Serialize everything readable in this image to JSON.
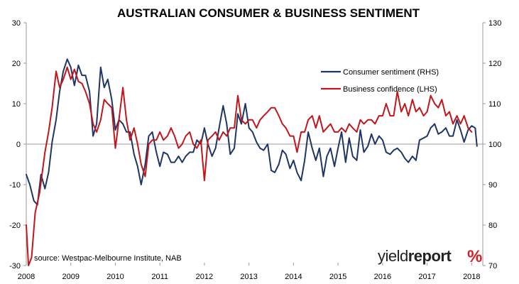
{
  "chart_data": {
    "type": "line",
    "title": "AUSTRALIAN CONSUMER & BUSINESS SENTIMENT",
    "x_range": [
      2008.0,
      2018.25
    ],
    "x_ticks": [
      "2008",
      "2009",
      "2010",
      "2011",
      "2012",
      "2013",
      "2014",
      "2015",
      "2016",
      "2017",
      "2018"
    ],
    "y_left": {
      "range": [
        -30,
        30
      ],
      "ticks": [
        "30",
        "20",
        "10",
        "0",
        "-10",
        "-20",
        "-30"
      ]
    },
    "y_right": {
      "range": [
        70,
        130
      ],
      "ticks": [
        "130",
        "120",
        "110",
        "100",
        "90",
        "80",
        "70"
      ]
    },
    "grid": false,
    "legend_placement": "upper-right",
    "source": "source: Westpac-Melbourne Institute, NAB",
    "logo": {
      "text_light": "yield",
      "text_bold": "report",
      "mark": "%"
    },
    "colors": {
      "consumer": "#1f3566",
      "business": "#c0161c",
      "axis": "#999999"
    },
    "series": [
      {
        "name": "Consumer sentiment (RHS)",
        "axis": "right",
        "color": "#1f3566",
        "points": [
          [
            2008.0,
            92.5
          ],
          [
            2008.08,
            90.0
          ],
          [
            2008.17,
            86.0
          ],
          [
            2008.25,
            85.0
          ],
          [
            2008.33,
            92.5
          ],
          [
            2008.42,
            89.0
          ],
          [
            2008.5,
            93.0
          ],
          [
            2008.58,
            100.5
          ],
          [
            2008.67,
            106.0
          ],
          [
            2008.75,
            113.0
          ],
          [
            2008.83,
            118.0
          ],
          [
            2008.92,
            121.0
          ],
          [
            2009.0,
            119.0
          ],
          [
            2009.08,
            114.5
          ],
          [
            2009.17,
            119.5
          ],
          [
            2009.25,
            117.0
          ],
          [
            2009.33,
            117.0
          ],
          [
            2009.42,
            113.0
          ],
          [
            2009.5,
            102.0
          ],
          [
            2009.58,
            105.0
          ],
          [
            2009.67,
            119.0
          ],
          [
            2009.75,
            114.0
          ],
          [
            2009.83,
            116.0
          ],
          [
            2009.92,
            111.0
          ],
          [
            2010.0,
            103.5
          ],
          [
            2010.08,
            106.0
          ],
          [
            2010.17,
            105.0
          ],
          [
            2010.25,
            103.0
          ],
          [
            2010.33,
            103.0
          ],
          [
            2010.42,
            97.5
          ],
          [
            2010.5,
            94.5
          ],
          [
            2010.58,
            90.0
          ],
          [
            2010.67,
            95.0
          ],
          [
            2010.75,
            102.0
          ],
          [
            2010.83,
            103.0
          ],
          [
            2010.92,
            98.0
          ],
          [
            2011.0,
            94.5
          ],
          [
            2011.08,
            98.0
          ],
          [
            2011.17,
            97.5
          ],
          [
            2011.25,
            95.5
          ],
          [
            2011.33,
            95.5
          ],
          [
            2011.42,
            97.0
          ],
          [
            2011.5,
            95.5
          ],
          [
            2011.58,
            97.0
          ],
          [
            2011.67,
            98.0
          ],
          [
            2011.75,
            98.0
          ],
          [
            2011.83,
            101.0
          ],
          [
            2011.92,
            100.0
          ],
          [
            2012.0,
            104.0
          ],
          [
            2012.08,
            100.0
          ],
          [
            2012.17,
            97.0
          ],
          [
            2012.25,
            99.0
          ],
          [
            2012.33,
            104.0
          ],
          [
            2012.42,
            109.5
          ],
          [
            2012.5,
            105.0
          ],
          [
            2012.58,
            97.5
          ],
          [
            2012.67,
            99.0
          ],
          [
            2012.75,
            107.5
          ],
          [
            2012.83,
            105.0
          ],
          [
            2012.92,
            110.0
          ],
          [
            2013.0,
            104.0
          ],
          [
            2013.08,
            103.0
          ],
          [
            2013.17,
            100.5
          ],
          [
            2013.25,
            99.0
          ],
          [
            2013.33,
            98.5
          ],
          [
            2013.42,
            100.0
          ],
          [
            2013.5,
            93.5
          ],
          [
            2013.58,
            93.0
          ],
          [
            2013.67,
            95.0
          ],
          [
            2013.75,
            98.5
          ],
          [
            2013.83,
            97.5
          ],
          [
            2013.92,
            94.0
          ],
          [
            2014.0,
            96.0
          ],
          [
            2014.08,
            93.0
          ],
          [
            2014.17,
            91.0
          ],
          [
            2014.25,
            96.0
          ],
          [
            2014.33,
            103.0
          ],
          [
            2014.42,
            99.0
          ],
          [
            2014.5,
            96.0
          ],
          [
            2014.58,
            99.0
          ],
          [
            2014.67,
            92.0
          ],
          [
            2014.75,
            97.0
          ],
          [
            2014.83,
            99.0
          ],
          [
            2014.92,
            94.5
          ],
          [
            2015.0,
            99.0
          ],
          [
            2015.08,
            103.0
          ],
          [
            2015.17,
            95.5
          ],
          [
            2015.25,
            101.5
          ],
          [
            2015.33,
            97.0
          ],
          [
            2015.42,
            96.0
          ],
          [
            2015.5,
            103.5
          ],
          [
            2015.58,
            98.0
          ],
          [
            2015.67,
            99.5
          ],
          [
            2015.75,
            102.5
          ],
          [
            2015.83,
            100.0
          ],
          [
            2015.92,
            102.0
          ],
          [
            2016.0,
            101.0
          ],
          [
            2016.08,
            98.0
          ],
          [
            2016.17,
            97.5
          ],
          [
            2016.25,
            98.5
          ],
          [
            2016.33,
            99.0
          ],
          [
            2016.42,
            98.0
          ],
          [
            2016.5,
            96.5
          ],
          [
            2016.58,
            95.5
          ],
          [
            2016.67,
            97.0
          ],
          [
            2016.75,
            96.0
          ],
          [
            2016.83,
            101.0
          ],
          [
            2016.92,
            101.5
          ],
          [
            2017.0,
            102.0
          ],
          [
            2017.08,
            104.0
          ],
          [
            2017.17,
            105.0
          ],
          [
            2017.25,
            102.5
          ],
          [
            2017.33,
            103.0
          ],
          [
            2017.42,
            104.0
          ],
          [
            2017.5,
            102.0
          ],
          [
            2017.58,
            102.0
          ],
          [
            2017.67,
            106.0
          ],
          [
            2017.75,
            103.5
          ],
          [
            2017.83,
            100.5
          ],
          [
            2017.92,
            103.5
          ],
          [
            2018.0,
            104.5
          ],
          [
            2018.08,
            104.0
          ],
          [
            2018.12,
            99.5
          ]
        ]
      },
      {
        "name": "Business confidence (LHS)",
        "axis": "left",
        "color": "#c0161c",
        "points": [
          [
            2008.0,
            -20.0
          ],
          [
            2008.05,
            -30.0
          ],
          [
            2008.12,
            -28.0
          ],
          [
            2008.2,
            -17.0
          ],
          [
            2008.3,
            -12.0
          ],
          [
            2008.42,
            -2.0
          ],
          [
            2008.5,
            3.0
          ],
          [
            2008.58,
            9.0
          ],
          [
            2008.67,
            18.0
          ],
          [
            2008.75,
            14.0
          ],
          [
            2008.83,
            16.0
          ],
          [
            2008.92,
            19.0
          ],
          [
            2009.0,
            16.0
          ],
          [
            2009.08,
            18.5
          ],
          [
            2009.17,
            15.5
          ],
          [
            2009.25,
            15.0
          ],
          [
            2009.33,
            13.0
          ],
          [
            2009.42,
            10.0
          ],
          [
            2009.5,
            5.0
          ],
          [
            2009.58,
            3.0
          ],
          [
            2009.67,
            6.0
          ],
          [
            2009.75,
            11.0
          ],
          [
            2009.83,
            10.0
          ],
          [
            2009.92,
            9.0
          ],
          [
            2010.0,
            -1.0
          ],
          [
            2010.08,
            6.0
          ],
          [
            2010.17,
            14.0
          ],
          [
            2010.25,
            6.0
          ],
          [
            2010.33,
            1.0
          ],
          [
            2010.42,
            4.0
          ],
          [
            2010.5,
            0.0
          ],
          [
            2010.58,
            -5.0
          ],
          [
            2010.67,
            -8.0
          ],
          [
            2010.75,
            0.0
          ],
          [
            2010.83,
            1.0
          ],
          [
            2010.92,
            1.0
          ],
          [
            2011.0,
            3.0
          ],
          [
            2011.08,
            1.0
          ],
          [
            2011.17,
            2.0
          ],
          [
            2011.25,
            4.0
          ],
          [
            2011.33,
            2.0
          ],
          [
            2011.42,
            -1.0
          ],
          [
            2011.5,
            0.0
          ],
          [
            2011.58,
            2.0
          ],
          [
            2011.67,
            3.0
          ],
          [
            2011.75,
            0.0
          ],
          [
            2011.83,
            -1.0
          ],
          [
            2011.92,
            1.0
          ],
          [
            2012.0,
            -9.0
          ],
          [
            2012.08,
            1.0
          ],
          [
            2012.17,
            2.0
          ],
          [
            2012.25,
            3.0
          ],
          [
            2012.33,
            1.0
          ],
          [
            2012.42,
            3.0
          ],
          [
            2012.5,
            2.0
          ],
          [
            2012.58,
            4.0
          ],
          [
            2012.67,
            4.0
          ],
          [
            2012.75,
            12.0
          ],
          [
            2012.83,
            6.0
          ],
          [
            2012.92,
            5.0
          ],
          [
            2013.0,
            6.0
          ],
          [
            2013.08,
            6.0
          ],
          [
            2013.17,
            4.0
          ],
          [
            2013.25,
            6.0
          ],
          [
            2013.33,
            7.0
          ],
          [
            2013.42,
            8.0
          ],
          [
            2013.5,
            9.0
          ],
          [
            2013.58,
            9.0
          ],
          [
            2013.67,
            7.0
          ],
          [
            2013.75,
            5.0
          ],
          [
            2013.83,
            4.0
          ],
          [
            2013.92,
            2.0
          ],
          [
            2014.0,
            2.0
          ],
          [
            2014.08,
            -2.0
          ],
          [
            2014.17,
            3.0
          ],
          [
            2014.25,
            3.0
          ],
          [
            2014.33,
            6.0
          ],
          [
            2014.42,
            7.0
          ],
          [
            2014.5,
            4.0
          ],
          [
            2014.58,
            7.0
          ],
          [
            2014.67,
            3.0
          ],
          [
            2014.75,
            4.0
          ],
          [
            2014.83,
            5.0
          ],
          [
            2014.92,
            3.0
          ],
          [
            2015.0,
            3.0
          ],
          [
            2015.08,
            4.0
          ],
          [
            2015.17,
            3.0
          ],
          [
            2015.25,
            5.0
          ],
          [
            2015.33,
            4.0
          ],
          [
            2015.42,
            3.0
          ],
          [
            2015.5,
            6.0
          ],
          [
            2015.58,
            5.0
          ],
          [
            2015.67,
            6.0
          ],
          [
            2015.75,
            6.0
          ],
          [
            2015.83,
            5.0
          ],
          [
            2015.92,
            7.0
          ],
          [
            2016.0,
            7.0
          ],
          [
            2016.08,
            10.0
          ],
          [
            2016.17,
            7.0
          ],
          [
            2016.25,
            7.0
          ],
          [
            2016.33,
            13.0
          ],
          [
            2016.42,
            8.0
          ],
          [
            2016.5,
            10.0
          ],
          [
            2016.58,
            7.0
          ],
          [
            2016.67,
            11.0
          ],
          [
            2016.75,
            8.0
          ],
          [
            2016.83,
            9.0
          ],
          [
            2016.92,
            7.0
          ],
          [
            2017.0,
            8.0
          ],
          [
            2017.08,
            12.0
          ],
          [
            2017.17,
            10.0
          ],
          [
            2017.25,
            9.0
          ],
          [
            2017.33,
            11.0
          ],
          [
            2017.42,
            7.0
          ],
          [
            2017.5,
            8.0
          ],
          [
            2017.58,
            5.0
          ],
          [
            2017.67,
            7.0
          ],
          [
            2017.75,
            5.0
          ],
          [
            2017.83,
            7.0
          ],
          [
            2017.92,
            4.0
          ],
          [
            2018.0,
            3.0
          ]
        ]
      }
    ]
  }
}
